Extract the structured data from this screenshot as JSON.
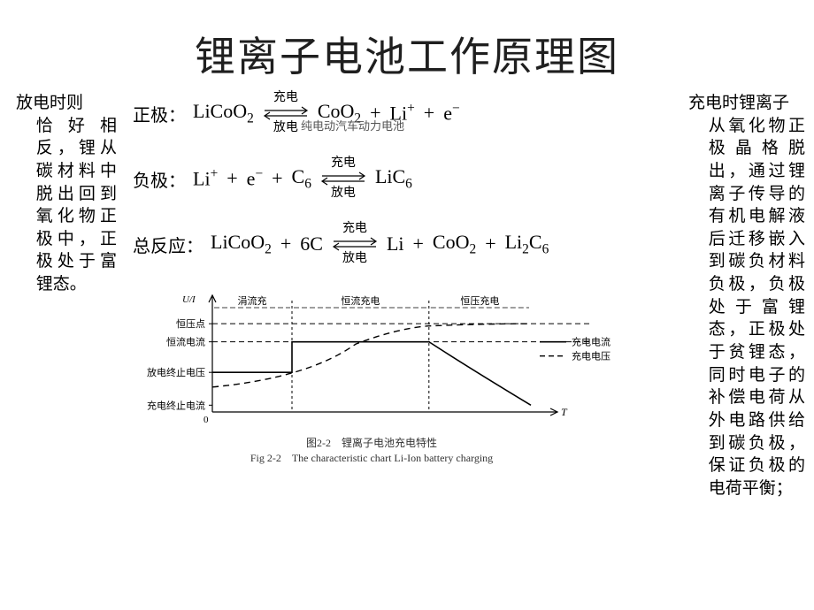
{
  "title": "锂离子电池工作原理图",
  "watermark": "纯电动汽车动力电池",
  "left_text": {
    "line1": "放电时则",
    "rest": "恰好相反，锂从碳材料中脱出回到氧化物正极中，正极处于富锂态。"
  },
  "right_text": {
    "line1": "充电时锂离子",
    "rest": "从氧化物正极晶格脱出，通过锂离子传导的有机电解液后迁移嵌入到碳负材料负极，负极处于富锂态，正极处于贫锂态，同时电子的补偿电荷从外电路供给到碳负极，保证负极的电荷平衡；"
  },
  "equations": {
    "pos_label": "正极：",
    "neg_label": "负极：",
    "total_label": "总反应：",
    "arrow_top": "充电",
    "arrow_bottom": "放电",
    "pos_left": "LiCoO",
    "pos_left_sub": "2",
    "pos_right_a": "CoO",
    "pos_right_a_sub": "2",
    "pos_right_b": "Li",
    "pos_right_c": "e",
    "neg_left_a": "Li",
    "neg_left_b": "e",
    "neg_left_c": "C",
    "neg_left_c_sub": "6",
    "neg_right": "LiC",
    "neg_right_sub": "6",
    "total_left_a": "LiCoO",
    "total_left_a_sub": "2",
    "total_left_b": "6C",
    "total_right_a": "Li",
    "total_right_b": "CoO",
    "total_right_b_sub": "2",
    "total_right_c": "Li",
    "total_right_c_sub": "2",
    "total_right_d": "C",
    "total_right_d_sub": "6"
  },
  "chart": {
    "y_axis_label": "U/I",
    "x_axis_label": "T",
    "phase1": "涓流充",
    "phase2": "恒流充电",
    "phase3": "恒压充电",
    "label_cv_point": "恒压点",
    "label_cc_current": "恒流电流",
    "label_discharge_end_v": "放电终止电压",
    "label_charge_end_i": "充电终止电流",
    "legend_current": "充电电流",
    "legend_voltage": "充电电压",
    "caption_cn": "图2-2　锂离子电池充电特性",
    "caption_en": "Fig 2-2　The characteristic chart Li-Ion battery charging",
    "colors": {
      "line": "#000000",
      "bg": "#ffffff",
      "text": "#000000"
    },
    "plot": {
      "x_range": [
        0,
        100
      ],
      "x_phase1_end": 25,
      "x_phase2_end": 68,
      "current_solid": [
        [
          0,
          35
        ],
        [
          25,
          35
        ],
        [
          25,
          62
        ],
        [
          68,
          62
        ],
        [
          100,
          6
        ]
      ],
      "voltage_dashed": [
        [
          0,
          22
        ],
        [
          25,
          30
        ],
        [
          45,
          60
        ],
        [
          60,
          72
        ],
        [
          68,
          76
        ],
        [
          85,
          78
        ],
        [
          100,
          78
        ]
      ],
      "y_cv": 78,
      "y_cc": 62,
      "y_discharge_end": 35,
      "y_charge_end_i": 6
    }
  }
}
